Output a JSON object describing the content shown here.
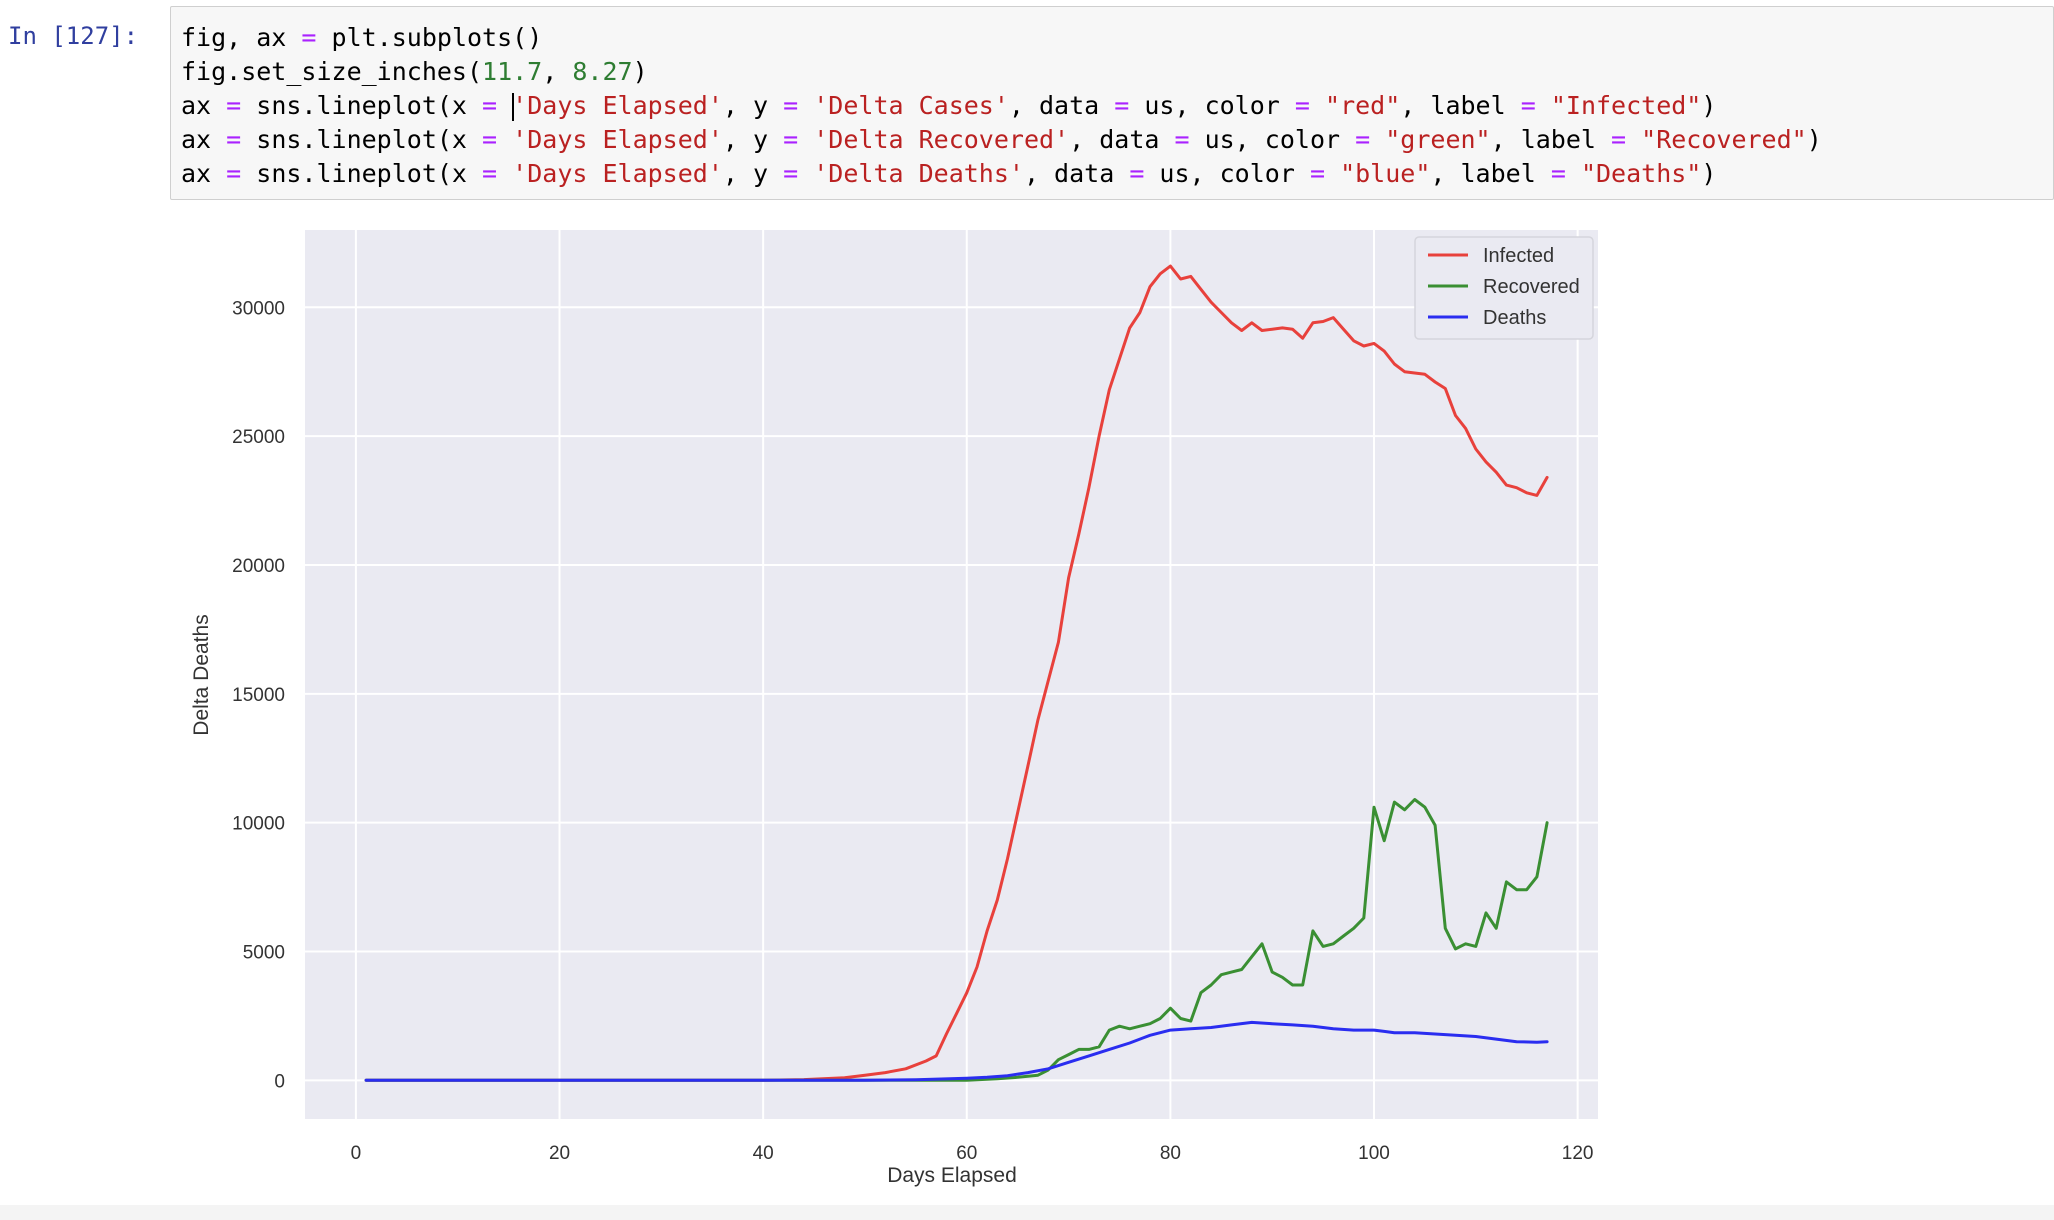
{
  "cell": {
    "prompt": "In [127]:",
    "code_lines": [
      [
        [
          "fig, ax ",
          ""
        ],
        [
          "=",
          "op"
        ],
        [
          " plt.subplots()",
          ""
        ]
      ],
      [
        [
          "fig.set_size_inches(",
          ""
        ],
        [
          "11.7",
          "num"
        ],
        [
          ", ",
          ""
        ],
        [
          "8.27",
          "num"
        ],
        [
          ")",
          ""
        ]
      ],
      [
        [
          "ax ",
          ""
        ],
        [
          "=",
          "op"
        ],
        [
          " sns.lineplot(x ",
          ""
        ],
        [
          "=",
          "op"
        ],
        [
          " ",
          ""
        ],
        [
          "|",
          "cursor"
        ],
        [
          "'Days Elapsed'",
          "str"
        ],
        [
          ", y ",
          ""
        ],
        [
          "=",
          "op"
        ],
        [
          " ",
          ""
        ],
        [
          "'Delta Cases'",
          "str"
        ],
        [
          ", data ",
          ""
        ],
        [
          "=",
          "op"
        ],
        [
          " us, color ",
          ""
        ],
        [
          "=",
          "op"
        ],
        [
          " ",
          ""
        ],
        [
          "\"red\"",
          "str"
        ],
        [
          ", label ",
          ""
        ],
        [
          "=",
          "op"
        ],
        [
          " ",
          ""
        ],
        [
          "\"Infected\"",
          "str"
        ],
        [
          ")",
          ""
        ]
      ],
      [
        [
          "ax ",
          ""
        ],
        [
          "=",
          "op"
        ],
        [
          " sns.lineplot(x ",
          ""
        ],
        [
          "=",
          "op"
        ],
        [
          " ",
          ""
        ],
        [
          "'Days Elapsed'",
          "str"
        ],
        [
          ", y ",
          ""
        ],
        [
          "=",
          "op"
        ],
        [
          " ",
          ""
        ],
        [
          "'Delta Recovered'",
          "str"
        ],
        [
          ", data ",
          ""
        ],
        [
          "=",
          "op"
        ],
        [
          " us, color ",
          ""
        ],
        [
          "=",
          "op"
        ],
        [
          " ",
          ""
        ],
        [
          "\"green\"",
          "str"
        ],
        [
          ", label ",
          ""
        ],
        [
          "=",
          "op"
        ],
        [
          " ",
          ""
        ],
        [
          "\"Recovered\"",
          "str"
        ],
        [
          ")",
          ""
        ]
      ],
      [
        [
          "ax ",
          ""
        ],
        [
          "=",
          "op"
        ],
        [
          " sns.lineplot(x ",
          ""
        ],
        [
          "=",
          "op"
        ],
        [
          " ",
          ""
        ],
        [
          "'Days Elapsed'",
          "str"
        ],
        [
          ", y ",
          ""
        ],
        [
          "=",
          "op"
        ],
        [
          " ",
          ""
        ],
        [
          "'Delta Deaths'",
          "str"
        ],
        [
          ", data ",
          ""
        ],
        [
          "=",
          "op"
        ],
        [
          " us, color ",
          ""
        ],
        [
          "=",
          "op"
        ],
        [
          " ",
          ""
        ],
        [
          "\"blue\"",
          "str"
        ],
        [
          ", label ",
          ""
        ],
        [
          "=",
          "op"
        ],
        [
          " ",
          ""
        ],
        [
          "\"Deaths\"",
          "str"
        ],
        [
          ")",
          ""
        ]
      ]
    ]
  },
  "colors": {
    "plot_bg": "#eaeaf2",
    "grid": "#ffffff",
    "infected": "#e8413c",
    "recovered": "#3a8f33",
    "deaths": "#2a2df0",
    "tick_text": "#333333"
  },
  "chart_data": {
    "type": "line",
    "xlabel": "Days Elapsed",
    "ylabel": "Delta Deaths",
    "xlim": [
      -5,
      122
    ],
    "ylim": [
      -1500,
      33000
    ],
    "xticks": [
      0,
      20,
      40,
      60,
      80,
      100,
      120
    ],
    "yticks": [
      0,
      5000,
      10000,
      15000,
      20000,
      25000,
      30000
    ],
    "grid": true,
    "legend_position": "top-right",
    "series": [
      {
        "name": "Infected",
        "color": "red",
        "x": [
          1,
          40,
          44,
          48,
          50,
          52,
          54,
          56,
          57,
          58,
          59,
          60,
          61,
          62,
          63,
          64,
          65,
          66,
          67,
          68,
          69,
          70,
          71,
          72,
          73,
          74,
          75,
          76,
          77,
          78,
          79,
          80,
          81,
          82,
          83,
          84,
          85,
          86,
          87,
          88,
          89,
          90,
          91,
          92,
          93,
          94,
          95,
          96,
          97,
          98,
          99,
          100,
          101,
          102,
          103,
          104,
          105,
          106,
          107,
          108,
          109,
          110,
          111,
          112,
          113,
          114,
          115,
          116,
          117
        ],
        "y": [
          0,
          0,
          30,
          100,
          200,
          300,
          450,
          750,
          950,
          1800,
          2600,
          3400,
          4400,
          5800,
          7000,
          8600,
          10400,
          12200,
          14000,
          15500,
          17000,
          19500,
          21200,
          23000,
          25000,
          26800,
          28000,
          29200,
          29800,
          30800,
          31300,
          31600,
          31100,
          31200,
          30700,
          30200,
          29800,
          29400,
          29100,
          29400,
          29100,
          29150,
          29200,
          29150,
          28800,
          29400,
          29450,
          29600,
          29150,
          28700,
          28500,
          28600,
          28300,
          27800,
          27500,
          27450,
          27400,
          27100,
          26850,
          25800,
          25300,
          24500,
          24000,
          23600,
          23100,
          23000,
          22800,
          22700,
          23400
        ]
      },
      {
        "name": "Recovered",
        "color": "green",
        "x": [
          1,
          60,
          63,
          65,
          67,
          68,
          69,
          70,
          71,
          72,
          73,
          74,
          75,
          76,
          77,
          78,
          79,
          80,
          81,
          82,
          83,
          84,
          85,
          86,
          87,
          88,
          89,
          90,
          91,
          92,
          93,
          94,
          95,
          96,
          97,
          98,
          99,
          100,
          101,
          102,
          103,
          104,
          105,
          106,
          107,
          108,
          109,
          110,
          111,
          112,
          113,
          114,
          115,
          116,
          117
        ],
        "y": [
          0,
          0,
          60,
          120,
          200,
          400,
          800,
          1000,
          1200,
          1200,
          1300,
          1950,
          2100,
          2000,
          2100,
          2200,
          2400,
          2800,
          2400,
          2300,
          3400,
          3700,
          4100,
          4200,
          4300,
          4800,
          5300,
          4200,
          4000,
          3700,
          3700,
          5800,
          5200,
          5300,
          5600,
          5900,
          6300,
          10600,
          9300,
          10800,
          10500,
          10900,
          10600,
          9900,
          5900,
          5100,
          5300,
          5200,
          6500,
          5900,
          7700,
          7400,
          7400,
          7900,
          10000
        ]
      },
      {
        "name": "Deaths",
        "color": "blue",
        "x": [
          1,
          50,
          55,
          60,
          62,
          64,
          66,
          68,
          70,
          72,
          74,
          76,
          78,
          80,
          82,
          84,
          86,
          88,
          90,
          92,
          94,
          96,
          98,
          100,
          101,
          102,
          104,
          106,
          108,
          110,
          112,
          114,
          116,
          117
        ],
        "y": [
          0,
          5,
          20,
          80,
          120,
          180,
          300,
          450,
          700,
          950,
          1200,
          1450,
          1750,
          1950,
          2000,
          2050,
          2150,
          2250,
          2200,
          2150,
          2100,
          2000,
          1950,
          1950,
          1900,
          1850,
          1850,
          1800,
          1750,
          1700,
          1600,
          1500,
          1480,
          1500
        ]
      }
    ]
  }
}
